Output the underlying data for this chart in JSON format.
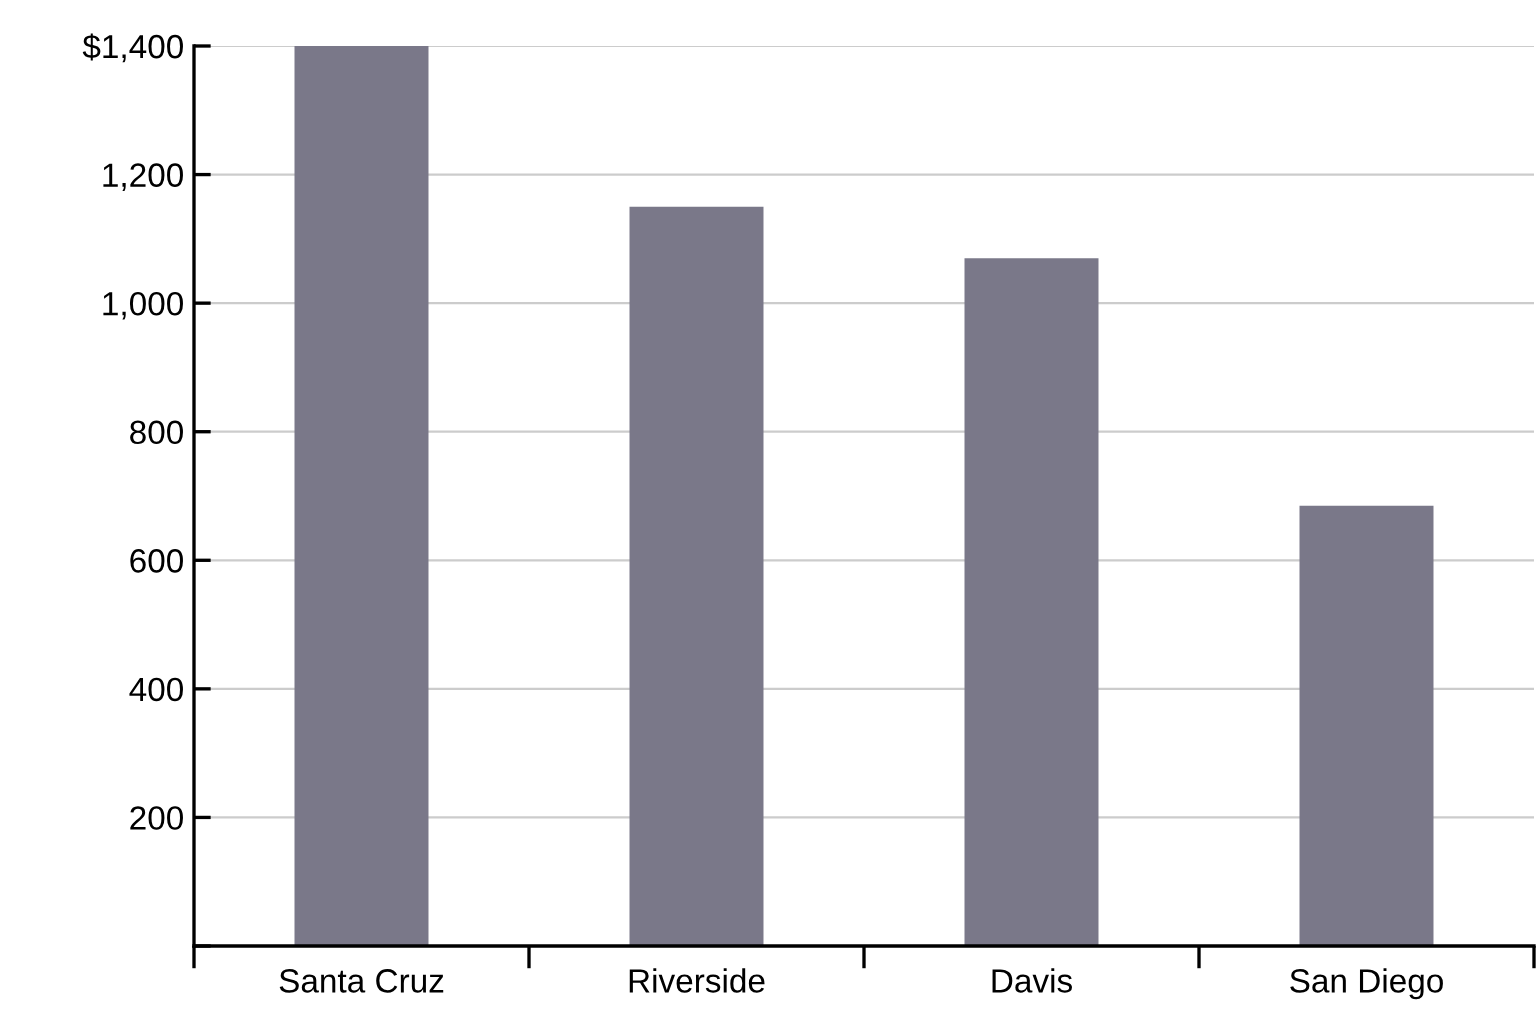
{
  "chart_data": {
    "type": "bar",
    "categories": [
      "Santa Cruz",
      "Riverside",
      "Davis",
      "San Diego"
    ],
    "values": [
      1400,
      1150,
      1070,
      685
    ],
    "color": "#7a7889",
    "ylim": [
      0,
      1400
    ],
    "yticks": [
      {
        "value": 0,
        "label": null
      },
      200,
      400,
      600,
      800,
      {
        "value": 1000,
        "label": "1,000"
      },
      {
        "value": 1200,
        "label": "1,200"
      },
      {
        "value": 1400,
        "label": "$1,400"
      }
    ],
    "grid": "y"
  }
}
